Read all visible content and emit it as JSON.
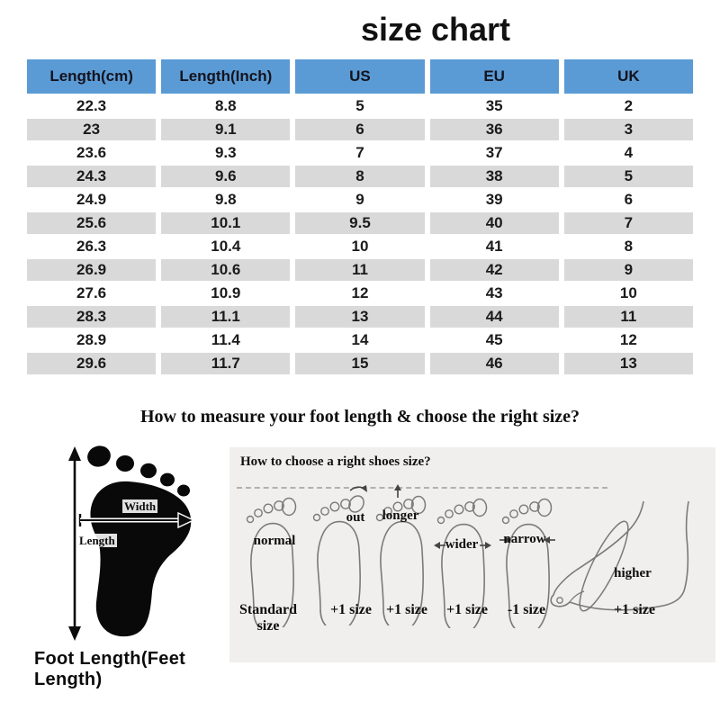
{
  "title": "size chart",
  "table": {
    "headers": [
      "Length(cm)",
      "Length(Inch)",
      "US",
      "EU",
      "UK"
    ],
    "rows": [
      [
        "22.3",
        "8.8",
        "5",
        "35",
        "2"
      ],
      [
        "23",
        "9.1",
        "6",
        "36",
        "3"
      ],
      [
        "23.6",
        "9.3",
        "7",
        "37",
        "4"
      ],
      [
        "24.3",
        "9.6",
        "8",
        "38",
        "5"
      ],
      [
        "24.9",
        "9.8",
        "9",
        "39",
        "6"
      ],
      [
        "25.6",
        "10.1",
        "9.5",
        "40",
        "7"
      ],
      [
        "26.3",
        "10.4",
        "10",
        "41",
        "8"
      ],
      [
        "26.9",
        "10.6",
        "11",
        "42",
        "9"
      ],
      [
        "27.6",
        "10.9",
        "12",
        "43",
        "10"
      ],
      [
        "28.3",
        "11.1",
        "13",
        "44",
        "11"
      ],
      [
        "28.9",
        "11.4",
        "14",
        "45",
        "12"
      ],
      [
        "29.6",
        "11.7",
        "15",
        "46",
        "13"
      ]
    ]
  },
  "measure": {
    "heading": "How to measure your foot length & choose the right size?",
    "width_label": "Width",
    "length_label": "Length",
    "caption": "Foot Length(Feet Length)"
  },
  "choose": {
    "heading": "How to choose a right shoes size?",
    "feet": [
      {
        "label": "normal",
        "size": "Standard size"
      },
      {
        "label": "out",
        "size": "+1 size"
      },
      {
        "label": "longer",
        "size": "+1 size"
      },
      {
        "label": "wider",
        "size": "+1 size"
      },
      {
        "label": "narrow",
        "size": "-1 size"
      },
      {
        "label": "higher",
        "size": "+1 size"
      }
    ]
  },
  "colors": {
    "header_bg": "#5b9bd5",
    "row_alt_bg": "#d9d9d9",
    "panel_bg": "#f1efed",
    "outline": "#7a7a7a"
  }
}
